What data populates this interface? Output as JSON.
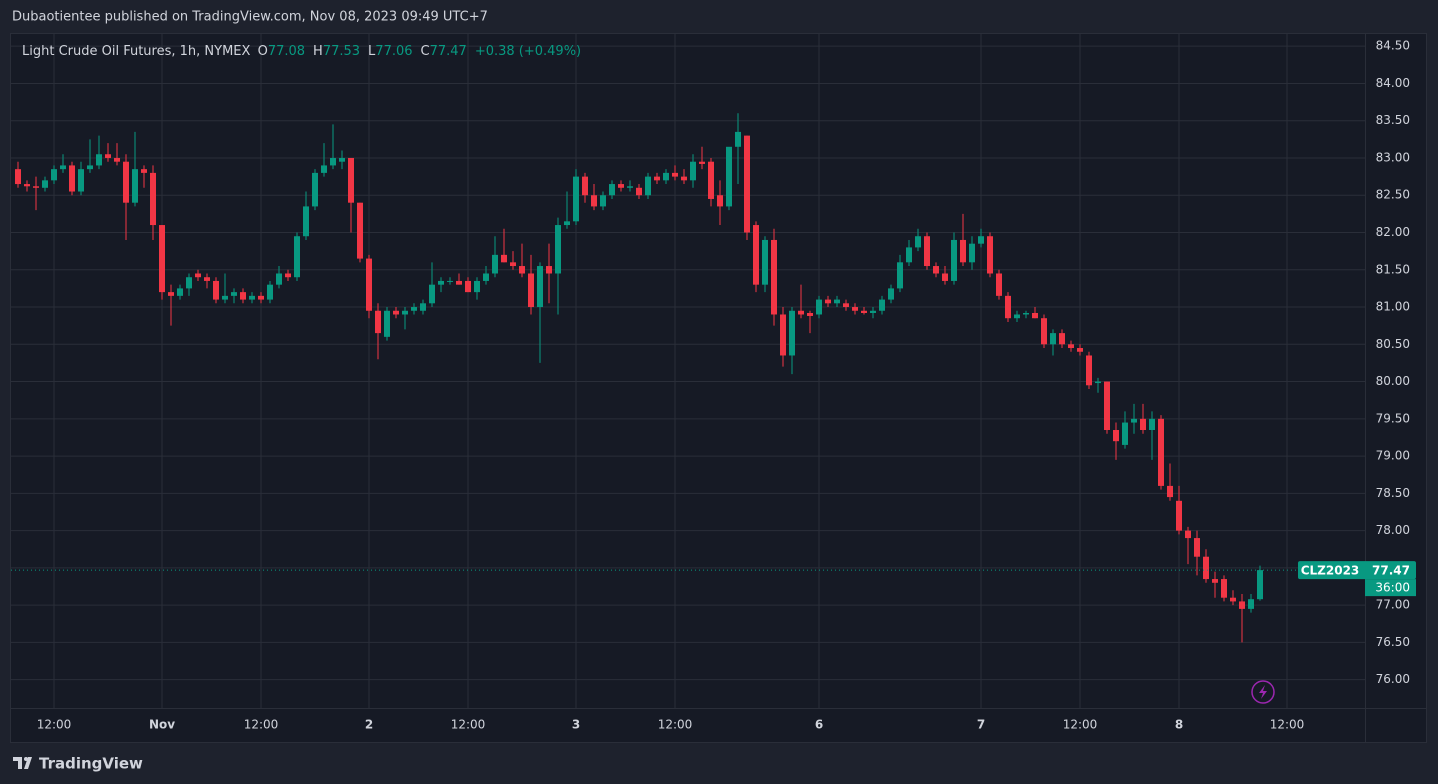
{
  "header": {
    "published": "Dubaotientee published on TradingView.com, Nov 08, 2023 09:49 UTC+7"
  },
  "footer": {
    "brand": "TradingView"
  },
  "chart_data": {
    "type": "candlestick",
    "title": "Light Crude Oil Futures, 1h, NYMEX",
    "legend": {
      "o": "O",
      "h": "H",
      "l": "L",
      "c": "C",
      "change_label": "+0.38 (+0.49%)"
    },
    "symbol": "CLZ2023",
    "countdown": "36:00",
    "up_color": "#089981",
    "down_color": "#f23645",
    "grid": true,
    "ylim": [
      75.62,
      84.65
    ],
    "yticks": [
      {
        "value": 76,
        "label": "76.00"
      },
      {
        "value": 76.5,
        "label": "76.50"
      },
      {
        "value": 77,
        "label": "77.00"
      },
      {
        "value": 77.5,
        "label": "77.50"
      },
      {
        "value": 78,
        "label": "78.00"
      },
      {
        "value": 78.5,
        "label": "78.50"
      },
      {
        "value": 79,
        "label": "79.00"
      },
      {
        "value": 79.5,
        "label": "79.50"
      },
      {
        "value": 80,
        "label": "80.00"
      },
      {
        "value": 80.5,
        "label": "80.50"
      },
      {
        "value": 81,
        "label": "81.00"
      },
      {
        "value": 81.5,
        "label": "81.50"
      },
      {
        "value": 82,
        "label": "82.00"
      },
      {
        "value": 82.5,
        "label": "82.50"
      },
      {
        "value": 83,
        "label": "83.00"
      },
      {
        "value": 83.5,
        "label": "83.50"
      },
      {
        "value": 84,
        "label": "84.00"
      },
      {
        "value": 84.5,
        "label": "84.50"
      }
    ],
    "categories": [
      null,
      null,
      null,
      null,
      "12:00",
      null,
      null,
      null,
      null,
      null,
      null,
      null,
      null,
      null,
      null,
      null,
      "Nov",
      null,
      null,
      null,
      null,
      null,
      null,
      null,
      null,
      null,
      null,
      "12:00",
      null,
      null,
      null,
      null,
      null,
      null,
      null,
      null,
      null,
      null,
      null,
      "2",
      null,
      null,
      null,
      null,
      null,
      null,
      null,
      null,
      null,
      null,
      "12:00",
      null,
      null,
      null,
      null,
      null,
      null,
      null,
      null,
      null,
      null,
      null,
      "3",
      null,
      null,
      null,
      null,
      null,
      null,
      null,
      null,
      null,
      null,
      "12:00",
      null,
      null,
      null,
      null,
      null,
      null,
      null,
      null,
      null,
      null,
      null,
      null,
      null,
      null,
      null,
      "6",
      null,
      null,
      null,
      null,
      null,
      null,
      null,
      null,
      null,
      null,
      null,
      null,
      null,
      null,
      null,
      null,
      null,
      "7",
      null,
      null,
      null,
      null,
      null,
      null,
      null,
      null,
      null,
      null,
      "12:00",
      null,
      null,
      null,
      null,
      null,
      null,
      null,
      null,
      null,
      null,
      "8",
      null,
      null,
      null,
      null,
      null,
      null,
      null,
      null,
      null,
      null,
      null,
      "12:00"
    ],
    "ohlc": [
      [
        82.85,
        82.95,
        82.6,
        82.65
      ],
      [
        82.65,
        82.7,
        82.55,
        82.62
      ],
      [
        82.62,
        82.75,
        82.3,
        82.6
      ],
      [
        82.6,
        82.75,
        82.55,
        82.7
      ],
      [
        82.7,
        82.9,
        82.65,
        82.85
      ],
      [
        82.85,
        83.05,
        82.8,
        82.9
      ],
      [
        82.9,
        82.95,
        82.5,
        82.55
      ],
      [
        82.55,
        82.95,
        82.5,
        82.85
      ],
      [
        82.85,
        83.25,
        82.8,
        82.9
      ],
      [
        82.9,
        83.3,
        82.85,
        83.05
      ],
      [
        83.05,
        83.2,
        82.95,
        83.0
      ],
      [
        83.0,
        83.2,
        82.9,
        82.95
      ],
      [
        82.95,
        83.05,
        81.9,
        82.4
      ],
      [
        82.4,
        83.35,
        82.35,
        82.85
      ],
      [
        82.85,
        82.9,
        82.6,
        82.8
      ],
      [
        82.8,
        82.9,
        81.9,
        82.1
      ],
      [
        82.1,
        82.1,
        81.1,
        81.2
      ],
      [
        81.2,
        81.3,
        80.75,
        81.15
      ],
      [
        81.15,
        81.3,
        81.1,
        81.25
      ],
      [
        81.25,
        81.45,
        81.15,
        81.4
      ],
      [
        81.45,
        81.5,
        81.35,
        81.4
      ],
      [
        81.4,
        81.45,
        81.25,
        81.35
      ],
      [
        81.35,
        81.4,
        81.05,
        81.1
      ],
      [
        81.1,
        81.45,
        81.05,
        81.15
      ],
      [
        81.15,
        81.25,
        81.05,
        81.2
      ],
      [
        81.2,
        81.25,
        81.05,
        81.1
      ],
      [
        81.1,
        81.2,
        81.05,
        81.15
      ],
      [
        81.15,
        81.2,
        81.05,
        81.1
      ],
      [
        81.1,
        81.35,
        81.05,
        81.3
      ],
      [
        81.3,
        81.55,
        81.25,
        81.45
      ],
      [
        81.45,
        81.5,
        81.35,
        81.4
      ],
      [
        81.4,
        82.0,
        81.35,
        81.95
      ],
      [
        81.95,
        82.55,
        81.9,
        82.35
      ],
      [
        82.35,
        82.85,
        82.3,
        82.8
      ],
      [
        82.8,
        83.2,
        82.75,
        82.9
      ],
      [
        82.9,
        83.45,
        82.85,
        83.0
      ],
      [
        82.95,
        83.1,
        82.85,
        83.0
      ],
      [
        83.0,
        83.0,
        82.0,
        82.4
      ],
      [
        82.4,
        82.4,
        81.6,
        81.65
      ],
      [
        81.65,
        81.7,
        80.85,
        80.95
      ],
      [
        80.95,
        81.05,
        80.3,
        80.65
      ],
      [
        80.6,
        81.0,
        80.55,
        80.95
      ],
      [
        80.95,
        81.0,
        80.85,
        80.9
      ],
      [
        80.9,
        81.0,
        80.7,
        80.95
      ],
      [
        80.95,
        81.05,
        80.9,
        81.0
      ],
      [
        80.95,
        81.1,
        80.9,
        81.05
      ],
      [
        81.05,
        81.6,
        81.0,
        81.3
      ],
      [
        81.3,
        81.4,
        81.2,
        81.35
      ],
      [
        81.35,
        81.4,
        81.3,
        81.35
      ],
      [
        81.35,
        81.45,
        81.3,
        81.3
      ],
      [
        81.35,
        81.4,
        81.2,
        81.2
      ],
      [
        81.2,
        81.4,
        81.1,
        81.35
      ],
      [
        81.35,
        81.55,
        81.3,
        81.45
      ],
      [
        81.45,
        81.95,
        81.4,
        81.7
      ],
      [
        81.7,
        82.05,
        81.6,
        81.6
      ],
      [
        81.6,
        81.75,
        81.5,
        81.55
      ],
      [
        81.55,
        81.85,
        81.4,
        81.45
      ],
      [
        81.45,
        81.7,
        80.9,
        81.0
      ],
      [
        81.0,
        81.6,
        80.25,
        81.55
      ],
      [
        81.55,
        81.85,
        81.05,
        81.45
      ],
      [
        81.45,
        82.2,
        80.9,
        82.1
      ],
      [
        82.1,
        82.55,
        82.05,
        82.15
      ],
      [
        82.15,
        82.85,
        82.1,
        82.75
      ],
      [
        82.75,
        82.8,
        82.4,
        82.5
      ],
      [
        82.5,
        82.65,
        82.3,
        82.35
      ],
      [
        82.35,
        82.55,
        82.3,
        82.5
      ],
      [
        82.5,
        82.7,
        82.45,
        82.65
      ],
      [
        82.65,
        82.7,
        82.55,
        82.6
      ],
      [
        82.6,
        82.7,
        82.55,
        82.62
      ],
      [
        82.6,
        82.65,
        82.45,
        82.5
      ],
      [
        82.5,
        82.8,
        82.45,
        82.75
      ],
      [
        82.75,
        82.8,
        82.65,
        82.7
      ],
      [
        82.7,
        82.85,
        82.65,
        82.8
      ],
      [
        82.8,
        82.9,
        82.7,
        82.75
      ],
      [
        82.75,
        82.85,
        82.65,
        82.7
      ],
      [
        82.7,
        83.05,
        82.6,
        82.95
      ],
      [
        82.95,
        83.15,
        82.85,
        82.92
      ],
      [
        82.95,
        83.0,
        82.35,
        82.45
      ],
      [
        82.5,
        82.7,
        82.1,
        82.35
      ],
      [
        82.35,
        83.1,
        82.3,
        83.15
      ],
      [
        83.15,
        83.6,
        82.65,
        83.35
      ],
      [
        83.3,
        83.3,
        81.9,
        82.0
      ],
      [
        82.1,
        82.15,
        81.2,
        81.3
      ],
      [
        81.3,
        81.95,
        81.2,
        81.9
      ],
      [
        81.9,
        82.05,
        80.75,
        80.9
      ],
      [
        80.9,
        81.0,
        80.2,
        80.35
      ],
      [
        80.35,
        81.0,
        80.1,
        80.95
      ],
      [
        80.95,
        81.3,
        80.85,
        80.9
      ],
      [
        80.92,
        80.95,
        80.65,
        80.88
      ],
      [
        80.9,
        81.15,
        80.85,
        81.1
      ],
      [
        81.1,
        81.15,
        81.0,
        81.05
      ],
      [
        81.05,
        81.15,
        81.0,
        81.1
      ],
      [
        81.05,
        81.1,
        80.95,
        81.0
      ],
      [
        81.0,
        81.05,
        80.9,
        80.95
      ],
      [
        80.95,
        81.0,
        80.9,
        80.92
      ],
      [
        80.92,
        81.0,
        80.85,
        80.95
      ],
      [
        80.95,
        81.15,
        80.9,
        81.1
      ],
      [
        81.1,
        81.3,
        81.05,
        81.25
      ],
      [
        81.25,
        81.7,
        81.2,
        81.6
      ],
      [
        81.6,
        81.9,
        81.55,
        81.8
      ],
      [
        81.8,
        82.05,
        81.75,
        81.95
      ],
      [
        81.95,
        82.0,
        81.5,
        81.55
      ],
      [
        81.55,
        81.6,
        81.4,
        81.45
      ],
      [
        81.45,
        81.55,
        81.3,
        81.35
      ],
      [
        81.35,
        82.0,
        81.3,
        81.9
      ],
      [
        81.9,
        82.25,
        81.55,
        81.6
      ],
      [
        81.6,
        81.95,
        81.5,
        81.85
      ],
      [
        81.85,
        82.05,
        81.8,
        81.95
      ],
      [
        81.95,
        82.0,
        81.4,
        81.45
      ],
      [
        81.45,
        81.5,
        81.1,
        81.15
      ],
      [
        81.15,
        81.2,
        80.8,
        80.85
      ],
      [
        80.85,
        80.95,
        80.8,
        80.9
      ],
      [
        80.9,
        80.95,
        80.85,
        80.92
      ],
      [
        80.92,
        81.0,
        80.85,
        80.85
      ],
      [
        80.85,
        80.9,
        80.45,
        80.5
      ],
      [
        80.5,
        80.7,
        80.35,
        80.65
      ],
      [
        80.65,
        80.7,
        80.45,
        80.5
      ],
      [
        80.5,
        80.55,
        80.4,
        80.45
      ],
      [
        80.45,
        80.5,
        80.35,
        80.4
      ],
      [
        80.35,
        80.4,
        79.9,
        79.95
      ],
      [
        79.98,
        80.05,
        79.85,
        80.0
      ],
      [
        80.0,
        80.0,
        79.3,
        79.35
      ],
      [
        79.35,
        79.45,
        78.95,
        79.2
      ],
      [
        79.15,
        79.6,
        79.1,
        79.45
      ],
      [
        79.45,
        79.7,
        79.3,
        79.5
      ],
      [
        79.5,
        79.7,
        79.3,
        79.35
      ],
      [
        79.35,
        79.6,
        78.95,
        79.5
      ],
      [
        79.5,
        79.55,
        78.55,
        78.6
      ],
      [
        78.6,
        78.9,
        78.4,
        78.45
      ],
      [
        78.4,
        78.6,
        77.95,
        78.0
      ],
      [
        78.0,
        78.05,
        77.55,
        77.9
      ],
      [
        77.9,
        78.0,
        77.4,
        77.65
      ],
      [
        77.65,
        77.75,
        77.3,
        77.35
      ],
      [
        77.35,
        77.45,
        77.1,
        77.3
      ],
      [
        77.35,
        77.4,
        77.05,
        77.1
      ],
      [
        77.1,
        77.2,
        77.0,
        77.05
      ],
      [
        77.05,
        77.15,
        76.5,
        76.95
      ],
      [
        76.95,
        77.15,
        76.9,
        77.08
      ],
      [
        77.08,
        77.53,
        77.06,
        77.47
      ],
      null,
      null,
      null
    ]
  }
}
